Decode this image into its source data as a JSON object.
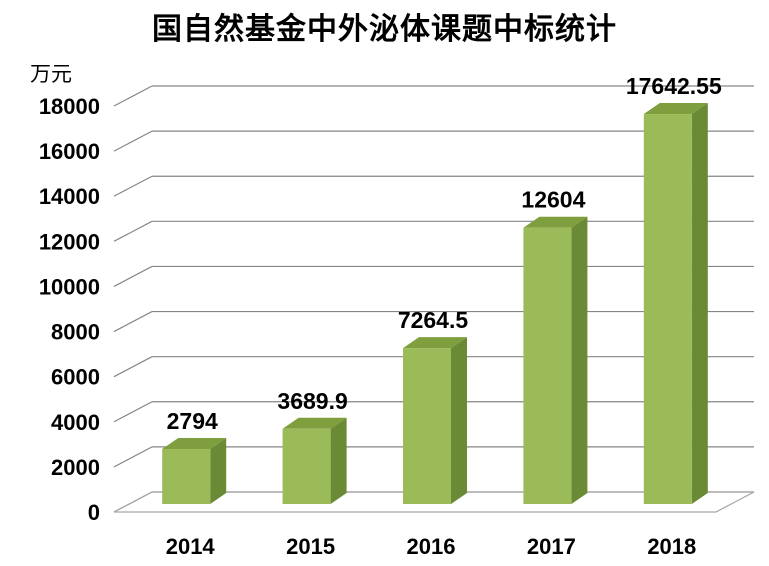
{
  "chart_data": {
    "type": "bar",
    "title": "国自然基金中外泌体课题中标统计",
    "ylabel": "万元",
    "xlabel": "",
    "categories": [
      "2014",
      "2015",
      "2016",
      "2017",
      "2018"
    ],
    "values": [
      2794,
      3689.9,
      7264.5,
      12604,
      17642.55
    ],
    "data_labels": [
      "2794",
      "3689.9",
      "7264.5",
      "12604",
      "17642.55"
    ],
    "yticks": [
      "0",
      "2000",
      "4000",
      "6000",
      "8000",
      "10000",
      "12000",
      "14000",
      "16000",
      "18000"
    ],
    "ylim": [
      0,
      18000
    ],
    "grid": true,
    "legend": "none",
    "colors": {
      "bar_front": "#9bbb59",
      "bar_side": "#6b8a35",
      "bar_top": "#7f9f3f",
      "grid": "#868686",
      "floor": "#a6a6a6"
    }
  }
}
